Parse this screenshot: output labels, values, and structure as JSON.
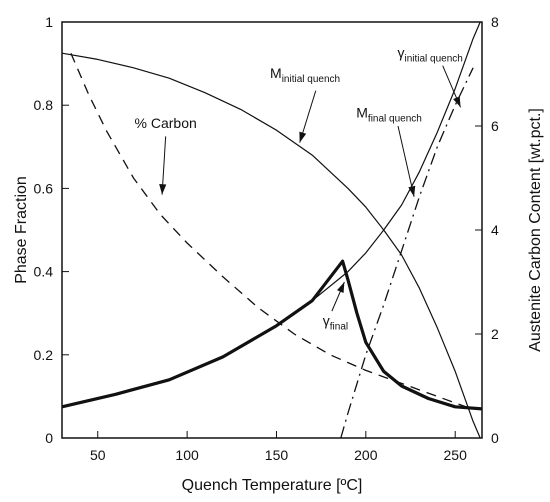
{
  "chart_data": {
    "type": "line",
    "xlabel": "Quench Temperature [ºC]",
    "ylabel": "Phase Fraction",
    "y2label": "Austenite Carbon Content [wt.pct.]",
    "xlim": [
      30,
      265
    ],
    "ylim": [
      0,
      1
    ],
    "y2lim": [
      0,
      8
    ],
    "xticks": [
      50,
      100,
      150,
      200,
      250
    ],
    "yticks": [
      0,
      0.2,
      0.4,
      0.6,
      0.8,
      1
    ],
    "y2ticks": [
      0,
      2,
      4,
      6,
      8
    ],
    "grid": false,
    "legend": "none",
    "series": [
      {
        "axis": "left",
        "style": "thin-solid",
        "points": [
          [
            30,
            0.925
          ],
          [
            50,
            0.91
          ],
          [
            70,
            0.89
          ],
          [
            90,
            0.865
          ],
          [
            110,
            0.83
          ],
          [
            130,
            0.79
          ],
          [
            150,
            0.74
          ],
          [
            170,
            0.68
          ],
          [
            190,
            0.6
          ],
          [
            200,
            0.555
          ],
          [
            210,
            0.5
          ],
          [
            220,
            0.44
          ],
          [
            230,
            0.36
          ],
          [
            240,
            0.265
          ],
          [
            250,
            0.16
          ],
          [
            260,
            0.04
          ],
          [
            264,
            0.0
          ]
        ]
      },
      {
        "axis": "left",
        "style": "thin-solid",
        "points": [
          [
            30,
            0.075
          ],
          [
            60,
            0.105
          ],
          [
            90,
            0.14
          ],
          [
            120,
            0.195
          ],
          [
            150,
            0.27
          ],
          [
            170,
            0.33
          ],
          [
            190,
            0.4
          ],
          [
            200,
            0.445
          ],
          [
            210,
            0.5
          ],
          [
            220,
            0.56
          ],
          [
            230,
            0.64
          ],
          [
            240,
            0.735
          ],
          [
            250,
            0.84
          ],
          [
            260,
            0.96
          ],
          [
            264,
            1.0
          ]
        ]
      },
      {
        "axis": "left",
        "style": "dash-dot",
        "points": [
          [
            186,
            0.0
          ],
          [
            190,
            0.06
          ],
          [
            200,
            0.2
          ],
          [
            210,
            0.32
          ],
          [
            220,
            0.45
          ],
          [
            230,
            0.58
          ],
          [
            240,
            0.7
          ],
          [
            250,
            0.8
          ],
          [
            260,
            0.89
          ]
        ]
      },
      {
        "axis": "left",
        "style": "thick-solid",
        "points": [
          [
            30,
            0.075
          ],
          [
            60,
            0.105
          ],
          [
            90,
            0.14
          ],
          [
            120,
            0.195
          ],
          [
            150,
            0.27
          ],
          [
            170,
            0.33
          ],
          [
            187,
            0.425
          ],
          [
            190,
            0.38
          ],
          [
            195,
            0.3
          ],
          [
            200,
            0.23
          ],
          [
            210,
            0.16
          ],
          [
            220,
            0.125
          ],
          [
            235,
            0.095
          ],
          [
            250,
            0.075
          ],
          [
            265,
            0.07
          ]
        ]
      },
      {
        "axis": "right",
        "style": "dashed",
        "points": [
          [
            35,
            7.4
          ],
          [
            45,
            6.6
          ],
          [
            55,
            5.9
          ],
          [
            70,
            5.0
          ],
          [
            85,
            4.3
          ],
          [
            100,
            3.75
          ],
          [
            120,
            3.1
          ],
          [
            140,
            2.5
          ],
          [
            160,
            2.0
          ],
          [
            180,
            1.6
          ],
          [
            200,
            1.3
          ],
          [
            220,
            1.05
          ],
          [
            240,
            0.8
          ],
          [
            260,
            0.55
          ]
        ]
      }
    ],
    "annotations": [
      {
        "main": "M",
        "sub": "initial quench",
        "x": 166,
        "y": 0.865
      },
      {
        "main": "γ",
        "sub": "initial quench",
        "x": 236,
        "y": 0.915
      },
      {
        "main": "M",
        "sub": "final quench",
        "x": 213,
        "y": 0.77
      },
      {
        "main": "% Carbon",
        "sub": "",
        "x": 88,
        "y": 0.745
      },
      {
        "main": "γ",
        "sub": "final",
        "x": 183,
        "y": 0.27
      }
    ],
    "arrows": [
      {
        "from": [
          172,
          0.835
        ],
        "to": [
          163,
          0.71
        ]
      },
      {
        "from": [
          88,
          0.725
        ],
        "to": [
          86,
          0.585
        ]
      },
      {
        "from": [
          218,
          0.75
        ],
        "to": [
          227,
          0.58
        ]
      },
      {
        "from": [
          243,
          0.895
        ],
        "to": [
          253,
          0.795
        ]
      },
      {
        "from": [
          181,
          0.305
        ],
        "to": [
          188,
          0.375
        ]
      }
    ]
  }
}
